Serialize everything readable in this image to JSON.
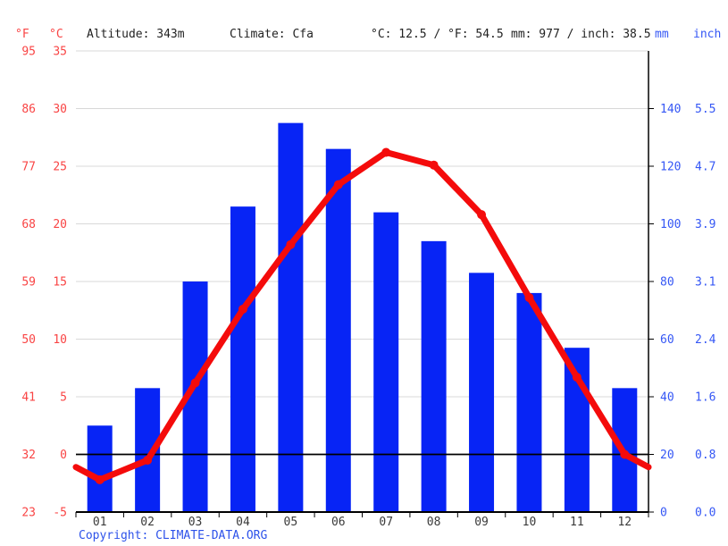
{
  "header": {
    "f_label": "°F",
    "c_label": "°C",
    "altitude": "Altitude: 343m",
    "climate": "Climate: Cfa",
    "temp_summary": "°C: 12.5 / °F: 54.5",
    "precip_summary": "mm: 977 / inch: 38.5",
    "mm_label": "mm",
    "inch_label": "inch"
  },
  "footer": {
    "copyright_prefix": "Copyright:",
    "copyright_link": "CLIMATE-DATA.ORG"
  },
  "colors": {
    "bar_blue": "#0724f5",
    "line_red": "#f40b0b",
    "red_label": "#f94444",
    "blue_label": "#3557f5",
    "copyright_blue": "#2d52ea",
    "month_label": "#3a3a3a",
    "grid": "#d8d8d8",
    "axis": "#000000",
    "background": "#ffffff"
  },
  "chart_data": {
    "type": "bar",
    "subtype": "climograph: precipitation bars + temperature line",
    "title": "",
    "categories": [
      "01",
      "02",
      "03",
      "04",
      "05",
      "06",
      "07",
      "08",
      "09",
      "10",
      "11",
      "12"
    ],
    "series": [
      {
        "name": "Precipitation",
        "unit": "mm",
        "type": "bar",
        "axis": "right",
        "values": [
          30,
          43,
          80,
          106,
          135,
          126,
          104,
          94,
          83,
          76,
          57,
          43
        ]
      },
      {
        "name": "Average temperature",
        "unit": "°C",
        "type": "line",
        "axis": "left",
        "values": [
          -2.2,
          -0.5,
          6.2,
          12.6,
          18.2,
          23.4,
          26.2,
          25.1,
          20.8,
          13.6,
          6.7,
          0.0
        ]
      }
    ],
    "left_axis": {
      "f_ticks": [
        95,
        86,
        77,
        68,
        59,
        50,
        41,
        32,
        23
      ],
      "c_ticks": [
        35,
        30,
        25,
        20,
        15,
        10,
        5,
        0,
        -5
      ],
      "range_c": [
        -5,
        35
      ]
    },
    "right_axis": {
      "mm_ticks": [
        140,
        120,
        100,
        80,
        60,
        40,
        20,
        0
      ],
      "inch_ticks": [
        "5.5",
        "4.7",
        "3.9",
        "3.1",
        "2.4",
        "1.6",
        "0.8",
        "0.0"
      ],
      "range_mm": [
        0,
        160
      ]
    },
    "grid": true,
    "zero_line_at_c": 0,
    "legend_position": "none",
    "annual_mean_c": 12.5,
    "annual_precip_mm": 977
  }
}
